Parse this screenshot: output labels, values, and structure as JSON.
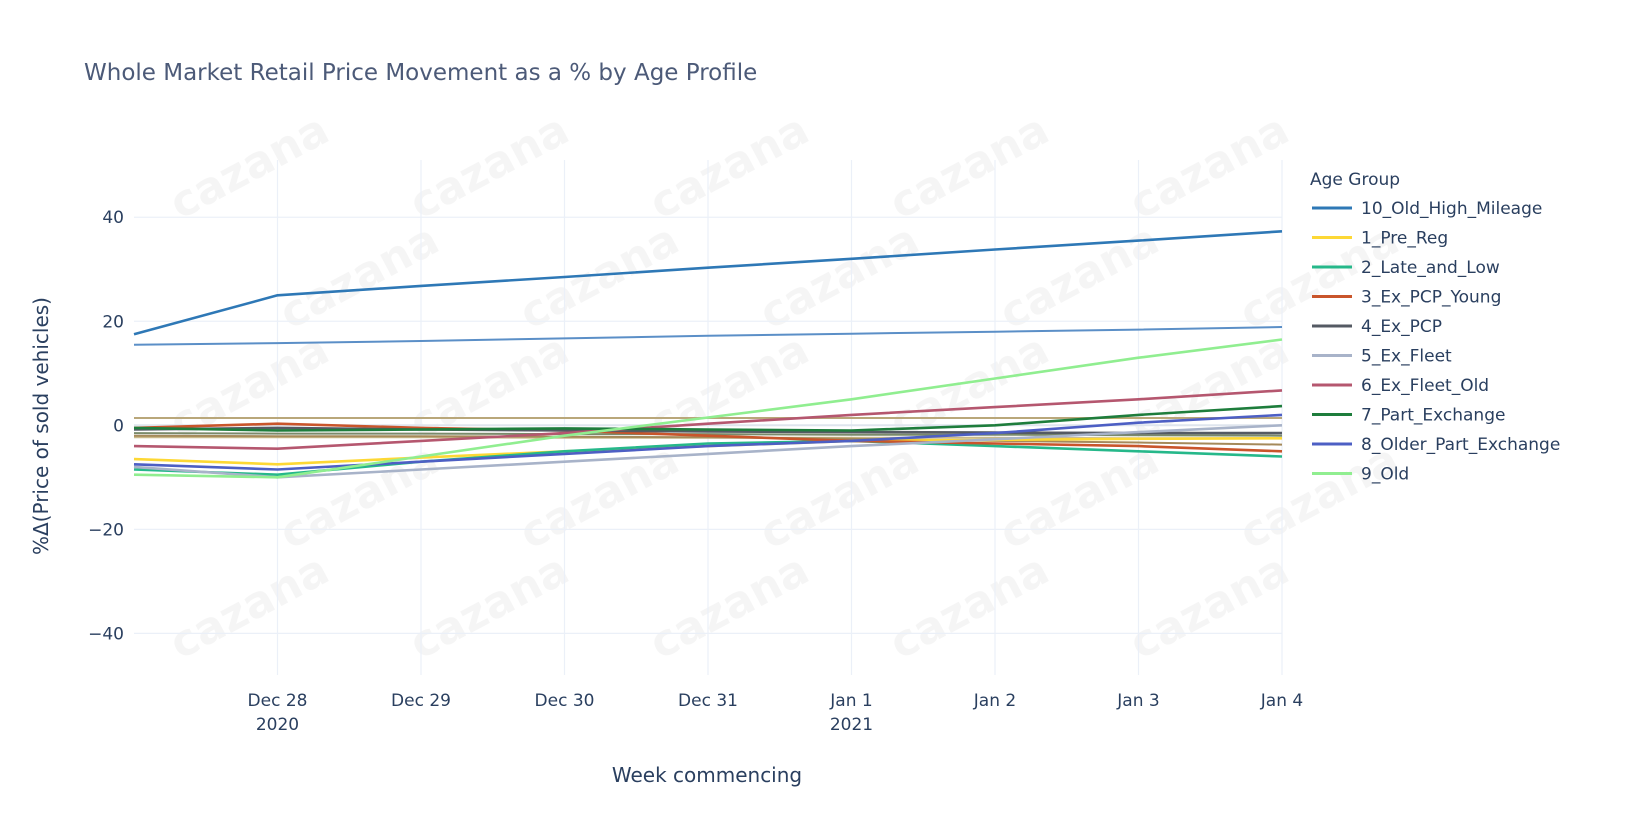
{
  "chart_data": {
    "type": "line",
    "title": "Whole Market Retail Price Movement as a % by Age Profile",
    "xlabel": "Week commencing",
    "ylabel": "%Δ(Price of sold vehicles)",
    "ylim": [
      -48,
      51
    ],
    "yticks": [
      40,
      20,
      0,
      -20,
      -40
    ],
    "ytick_labels": [
      "40",
      "20",
      "0",
      "−20",
      "−40"
    ],
    "x_min": 0,
    "x_max": 8,
    "x": [
      "2020-12-27",
      "2020-12-28",
      "2020-12-29",
      "2020-12-30",
      "2020-12-31",
      "2021-01-01",
      "2021-01-02",
      "2021-01-03",
      "2021-01-04"
    ],
    "xtick_labels": [
      {
        "line1": "Dec 28",
        "line2": "2020"
      },
      {
        "line1": "Dec 29",
        "line2": ""
      },
      {
        "line1": "Dec 30",
        "line2": ""
      },
      {
        "line1": "Dec 31",
        "line2": ""
      },
      {
        "line1": "Jan 1",
        "line2": "2021"
      },
      {
        "line1": "Jan 2",
        "line2": ""
      },
      {
        "line1": "Jan 3",
        "line2": ""
      },
      {
        "line1": "Jan 4",
        "line2": ""
      }
    ],
    "grid": true,
    "legend_position": "right",
    "legend_title": "Age Group",
    "series": [
      {
        "name": "10_Old_High_Mileage",
        "color": "#2e78b6",
        "values": [
          17.5,
          25.0,
          26.8,
          28.5,
          30.3,
          32.0,
          33.8,
          35.5,
          37.3
        ]
      },
      {
        "name": "1_Pre_Reg",
        "color": "#fdd835",
        "values": [
          -6.5,
          -7.5,
          -6.2,
          -5.0,
          -4.0,
          -3.0,
          -2.8,
          -2.6,
          -2.5
        ]
      },
      {
        "name": "2_Late_and_Low",
        "color": "#26b88a",
        "values": [
          -8.5,
          -9.5,
          -7.0,
          -5.0,
          -3.5,
          -3.0,
          -4.0,
          -5.0,
          -6.0
        ]
      },
      {
        "name": "3_Ex_PCP_Young",
        "color": "#c9552b",
        "values": [
          -0.5,
          0.3,
          -0.5,
          -1.0,
          -2.0,
          -3.0,
          -3.5,
          -4.0,
          -5.0
        ]
      },
      {
        "name": "4_Ex_PCP",
        "color": "#545a63",
        "values": [
          -0.8,
          -0.5,
          -0.8,
          -1.0,
          -1.2,
          -1.3,
          -1.4,
          -1.5,
          -1.5
        ]
      },
      {
        "name": "5_Ex_Fleet",
        "color": "#a8b3c9",
        "values": [
          -8.0,
          -10.0,
          -8.5,
          -7.0,
          -5.5,
          -4.0,
          -2.7,
          -1.3,
          0.0
        ]
      },
      {
        "name": "6_Ex_Fleet_Old",
        "color": "#b5576f",
        "values": [
          -4.0,
          -4.5,
          -3.0,
          -1.5,
          0.3,
          2.0,
          3.5,
          5.0,
          6.7
        ]
      },
      {
        "name": "7_Part_Exchange",
        "color": "#1e7d3c",
        "values": [
          -0.5,
          -1.0,
          -0.8,
          -0.6,
          -0.8,
          -1.0,
          0.0,
          2.0,
          3.7
        ]
      },
      {
        "name": "8_Older_Part_Exchange",
        "color": "#4d5fc4",
        "values": [
          -7.5,
          -8.5,
          -7.0,
          -5.5,
          -4.0,
          -3.0,
          -1.5,
          0.5,
          2.0
        ]
      },
      {
        "name": "9_Old",
        "color": "#90ee90",
        "values": [
          -9.5,
          -10.0,
          -6.0,
          -2.0,
          1.5,
          5.0,
          9.0,
          13.0,
          16.5
        ]
      },
      {
        "name": "",
        "color": "#5b8fc7",
        "values": [
          15.5,
          15.8,
          16.2,
          16.7,
          17.2,
          17.6,
          18.0,
          18.4,
          18.9
        ]
      },
      {
        "name": "",
        "color": "#b9a77a",
        "values": [
          1.4,
          1.4,
          1.4,
          1.4,
          1.4,
          1.4,
          1.4,
          1.4,
          1.4
        ]
      },
      {
        "name": "",
        "color": "#c9b98a",
        "values": [
          -2.3,
          -2.3,
          -2.3,
          -2.4,
          -2.4,
          -2.4,
          -2.4,
          -2.5,
          -2.5
        ]
      },
      {
        "name": "",
        "color": "#7a8a6a",
        "values": [
          -1.5,
          -1.6,
          -1.6,
          -1.7,
          -1.7,
          -1.8,
          -1.8,
          -1.9,
          -2.0
        ]
      },
      {
        "name": "",
        "color": "#a58a5a",
        "values": [
          -2.0,
          -2.1,
          -2.1,
          -2.2,
          -2.3,
          -2.6,
          -3.0,
          -3.3,
          -3.7
        ]
      }
    ],
    "legend_entries": [
      0,
      1,
      2,
      3,
      4,
      5,
      6,
      7,
      8,
      9
    ],
    "watermark_text": "cazana"
  }
}
